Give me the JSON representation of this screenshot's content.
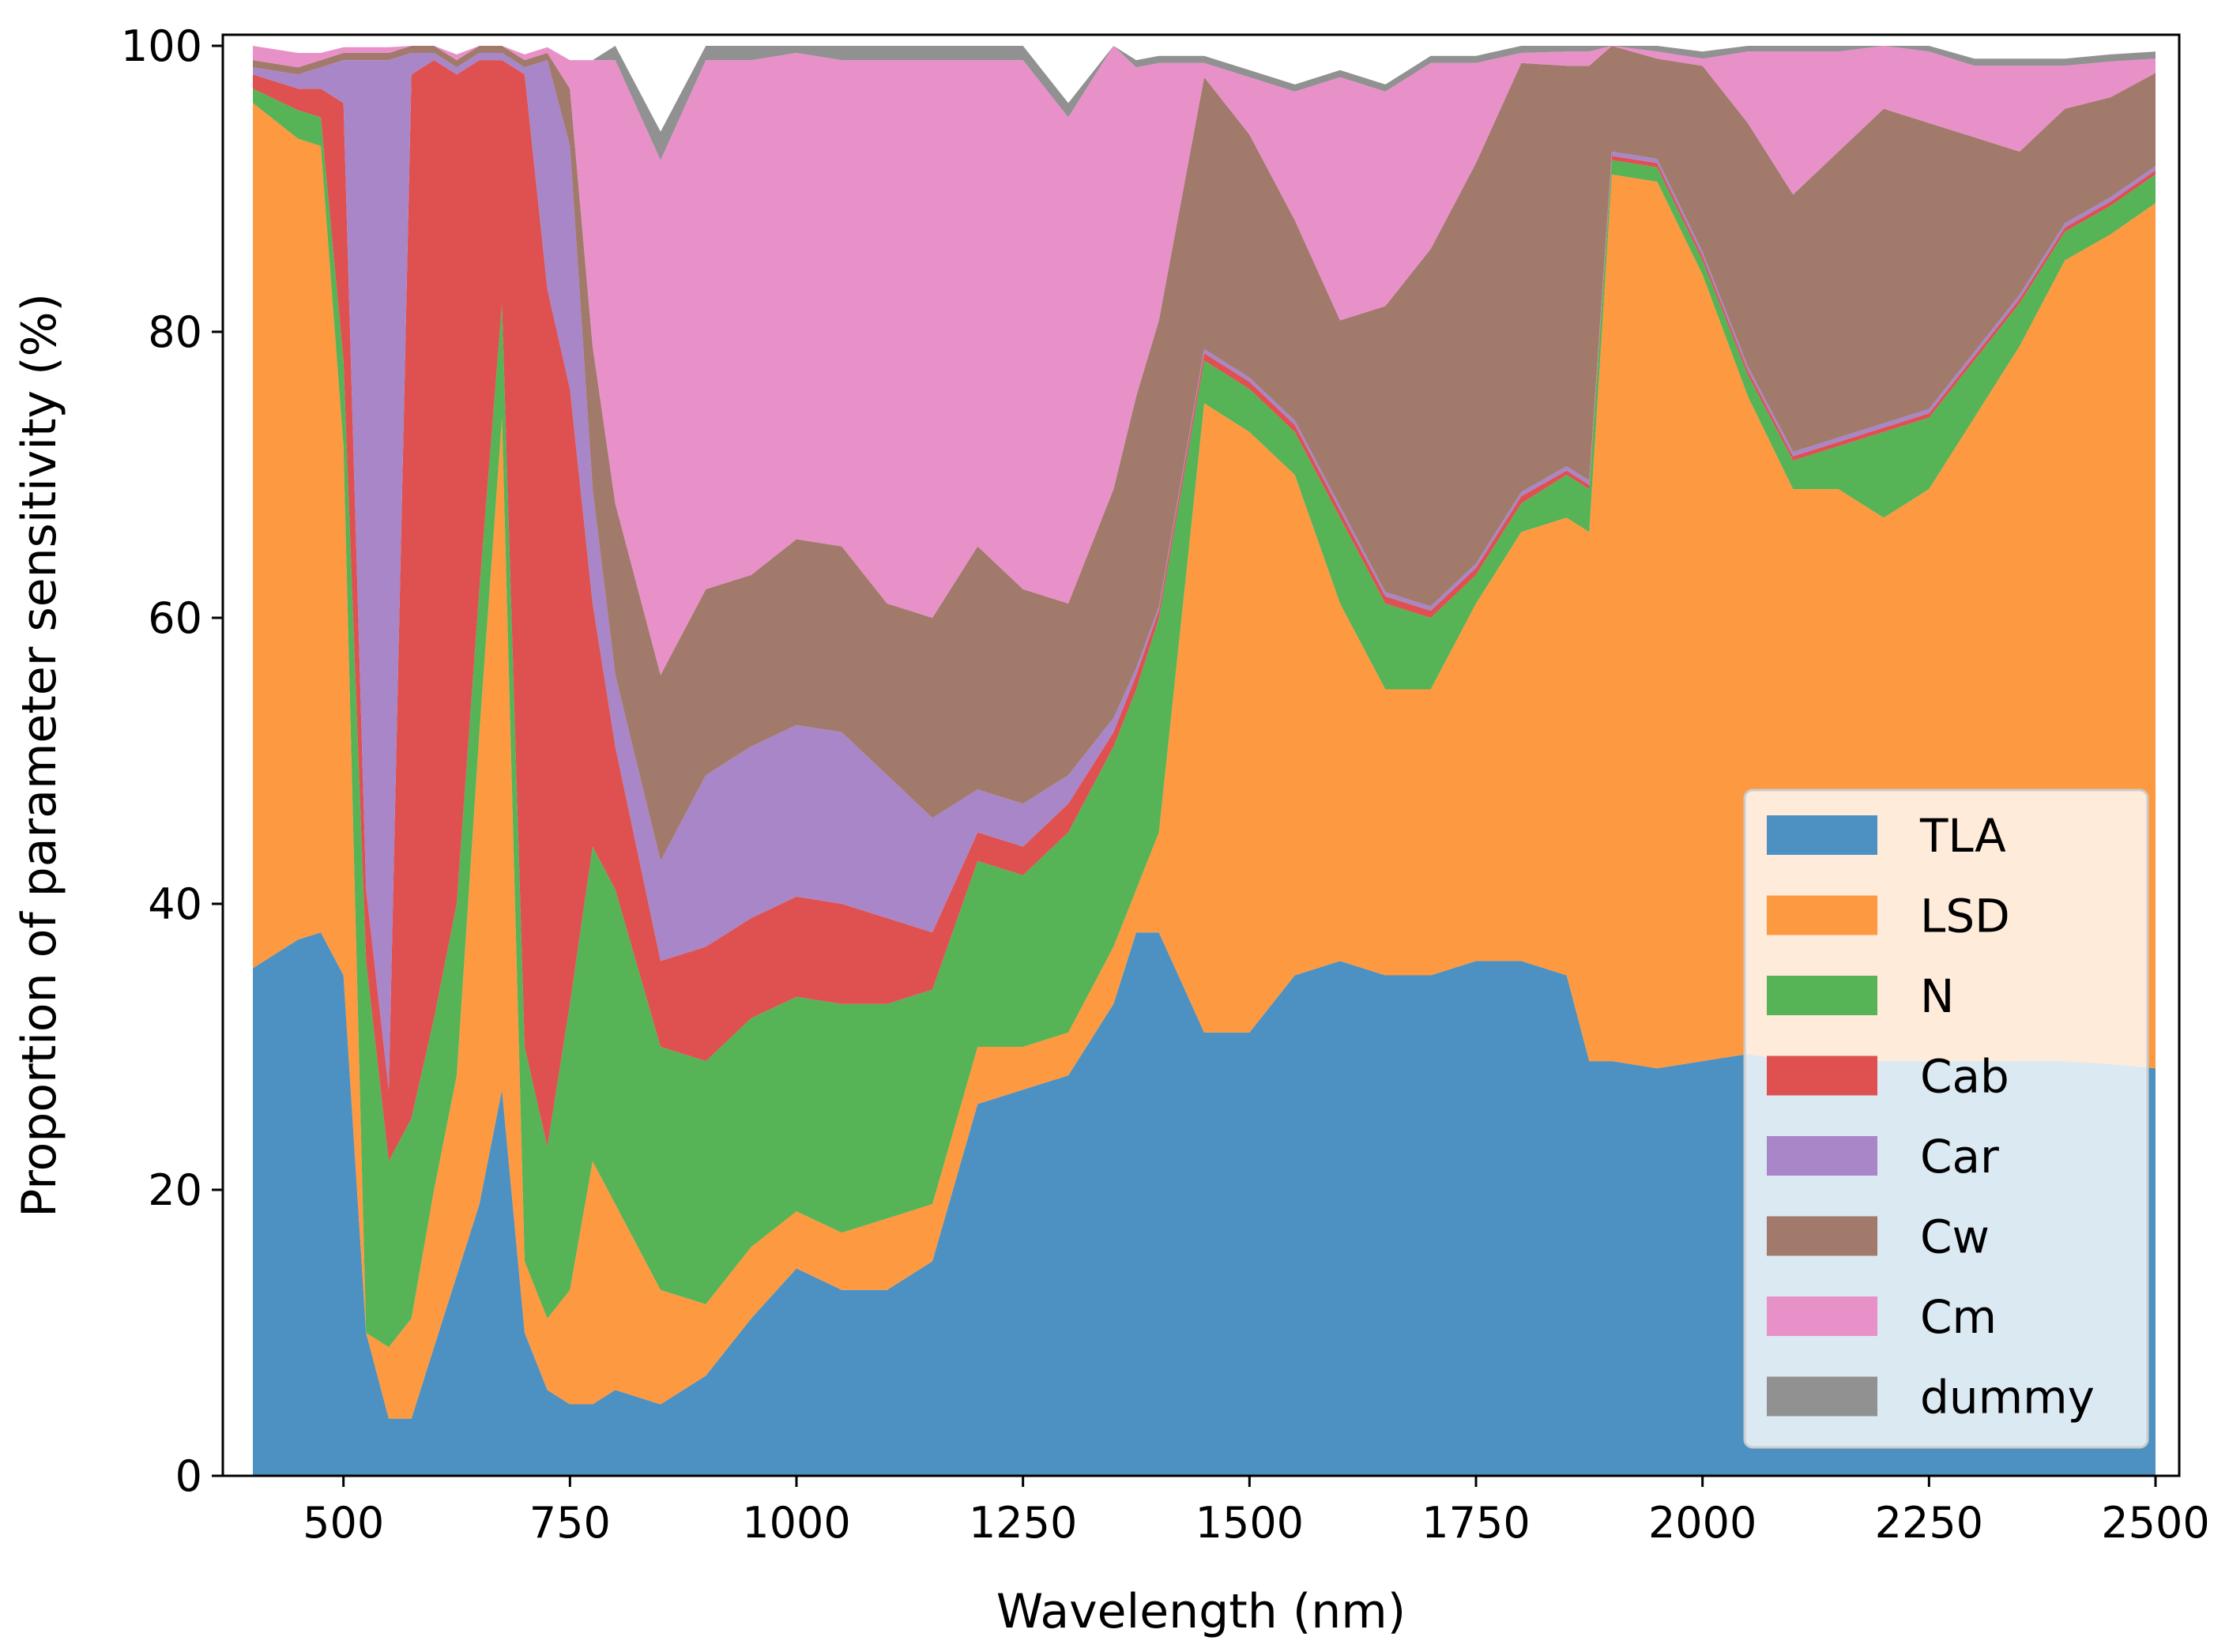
{
  "chart_data": {
    "type": "area",
    "stacked": true,
    "title": "",
    "xlabel": "Wavelength (nm)",
    "ylabel": "Proportion of parameter sensitivity (%)",
    "xlim": [
      400,
      2500
    ],
    "ylim": [
      0,
      100
    ],
    "xticks": [
      500,
      750,
      1000,
      1250,
      1500,
      1750,
      2000,
      2250,
      2500
    ],
    "yticks": [
      0,
      20,
      40,
      60,
      80,
      100
    ],
    "grid": false,
    "legend_position": "lower-right",
    "x": [
      400,
      450,
      475,
      500,
      525,
      550,
      575,
      600,
      625,
      650,
      675,
      700,
      725,
      750,
      775,
      800,
      850,
      900,
      950,
      1000,
      1050,
      1100,
      1150,
      1200,
      1250,
      1300,
      1350,
      1375,
      1400,
      1450,
      1500,
      1550,
      1600,
      1650,
      1700,
      1750,
      1800,
      1850,
      1875,
      1900,
      1950,
      2000,
      2050,
      2100,
      2150,
      2200,
      2250,
      2300,
      2350,
      2400,
      2450,
      2500
    ],
    "series": [
      {
        "name": "TLA",
        "color": "#4c91c2",
        "values": [
          35.5,
          37.5,
          38,
          35,
          10,
          4,
          4,
          9,
          14,
          19,
          27,
          10,
          6,
          5,
          5,
          6,
          5,
          7,
          11,
          14.5,
          13,
          13,
          15,
          26,
          27,
          28,
          33,
          38,
          38,
          31,
          31,
          35,
          36,
          35,
          35,
          36,
          36,
          35,
          29,
          29,
          28.5,
          29,
          29.5,
          29,
          29,
          29,
          29,
          29,
          29,
          29,
          28.8,
          28.5
        ]
      },
      {
        "name": "LSD",
        "color": "#fd9940",
        "values": [
          60.5,
          56,
          55,
          37,
          0,
          5,
          7,
          11,
          14,
          33,
          47,
          5,
          5,
          8,
          17,
          13,
          8,
          5,
          5,
          4,
          4,
          5,
          4,
          4,
          3,
          3,
          4,
          3,
          7,
          44,
          42,
          35,
          25,
          20,
          20,
          25,
          30,
          32,
          37,
          62,
          62,
          55,
          46,
          40,
          40,
          38,
          40,
          45,
          50,
          56,
          58,
          60.5
        ]
      },
      {
        "name": "N",
        "color": "#56b356",
        "values": [
          1,
          2,
          2,
          6,
          26,
          13,
          14,
          12,
          12,
          10,
          8,
          15,
          12,
          20,
          22,
          22,
          17,
          17,
          16,
          15,
          16,
          15,
          15,
          13,
          12,
          14,
          14,
          14,
          15,
          3,
          3,
          3,
          6,
          6,
          5,
          2,
          2,
          3,
          3,
          1,
          1,
          1,
          1.5,
          2,
          3,
          6,
          5,
          4,
          3,
          2,
          2,
          2
        ]
      },
      {
        "name": "Cab",
        "color": "#df5050",
        "values": [
          1,
          1.5,
          2,
          18,
          5,
          5,
          73,
          67,
          58,
          37,
          17,
          68,
          60,
          43,
          17,
          10,
          6,
          8,
          7,
          7,
          7,
          6,
          4,
          2,
          2,
          2,
          1,
          1,
          0.5,
          0.5,
          0.5,
          0.5,
          0.5,
          0.5,
          0.5,
          0.5,
          0.5,
          0.3,
          0.3,
          0.3,
          0.3,
          0.3,
          0.3,
          0.3,
          0.3,
          0.3,
          0.3,
          0.3,
          0.3,
          0.3,
          0.3,
          0.3
        ]
      },
      {
        "name": "Car",
        "color": "#a886c7",
        "values": [
          0.5,
          1,
          1.5,
          3,
          58,
          72,
          1.5,
          0.5,
          0.5,
          0.5,
          0.5,
          0.5,
          16,
          17,
          8,
          5,
          7,
          12,
          12,
          12,
          12,
          10,
          8,
          3,
          3,
          2,
          1,
          0.5,
          0.3,
          0.3,
          0.3,
          0.3,
          0.3,
          0.3,
          0.3,
          0.3,
          0.3,
          0.3,
          0.3,
          0.3,
          0.3,
          0.3,
          0.3,
          0.3,
          0.3,
          0.3,
          0.3,
          0.3,
          0.3,
          0.3,
          0.3,
          0.3
        ]
      },
      {
        "name": "Cw",
        "color": "#a27a6c",
        "values": [
          0.5,
          0.5,
          0.5,
          0.5,
          0.5,
          0.5,
          0.5,
          0.5,
          0.5,
          0.5,
          0.5,
          0.5,
          0.5,
          4,
          10,
          12,
          13,
          13,
          12,
          13,
          13,
          12,
          14,
          17,
          15,
          12,
          16,
          19,
          20,
          19,
          17,
          14,
          13,
          20,
          25,
          28,
          30,
          28,
          29,
          10,
          7,
          13,
          17,
          18,
          20,
          22,
          20,
          15,
          10,
          8,
          7,
          6.5
        ]
      },
      {
        "name": "Cm",
        "color": "#e891c8",
        "values": [
          1,
          1,
          0.5,
          0.4,
          0.4,
          0.4,
          0.4,
          0.4,
          0.4,
          0.4,
          0.4,
          0.4,
          0.4,
          2,
          20,
          31,
          36,
          37,
          36,
          34,
          34,
          38,
          39,
          34,
          37,
          34,
          33,
          23,
          18,
          1,
          4,
          9,
          17,
          15,
          13,
          7,
          0.7,
          1,
          1,
          0.5,
          0.5,
          0.5,
          5,
          10,
          7,
          5,
          5,
          5,
          6,
          3,
          2.5,
          1
        ]
      },
      {
        "name": "dummy",
        "color": "#919191",
        "values": [
          0,
          0,
          0,
          0,
          0,
          0,
          0,
          0,
          0,
          0,
          0,
          0,
          0,
          0,
          0,
          1,
          2,
          1,
          1,
          1,
          1,
          1,
          1,
          1,
          1,
          1,
          0.5,
          0.5,
          0.5,
          0.5,
          0.5,
          0.5,
          0.5,
          0.5,
          0.5,
          0.5,
          0.5,
          0.5,
          0.5,
          0.5,
          0.5,
          0.5,
          0.5,
          0.5,
          0.5,
          0.5,
          0.5,
          0.5,
          0.5,
          0.5,
          0.5,
          0.5
        ]
      }
    ]
  }
}
